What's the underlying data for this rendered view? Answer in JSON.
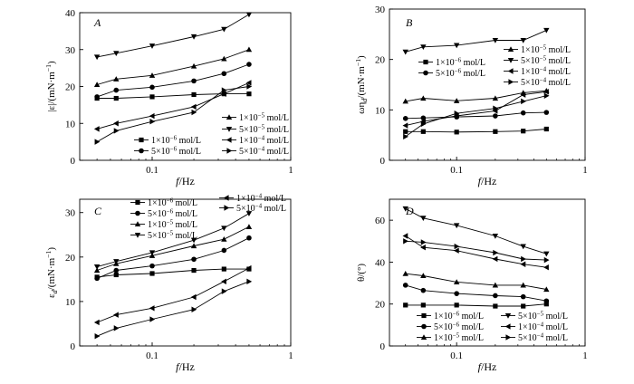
{
  "chart_data": [
    {
      "type": "line",
      "panel": "A",
      "xscale": "log",
      "xlim": [
        0.03,
        1
      ],
      "ylim": [
        0,
        40
      ],
      "xlabel": "f/Hz",
      "ylabel": "|ε|/(mN·m⁻¹)",
      "xticks": [
        0.1,
        1
      ],
      "xticklabels": [
        "0.1",
        "1"
      ],
      "yticks": [
        0,
        10,
        20,
        30,
        40
      ],
      "x": [
        0.04,
        0.055,
        0.1,
        0.2,
        0.33,
        0.5
      ],
      "legend": [
        {
          "col": 1,
          "row": 0,
          "series": 2
        },
        {
          "col": 1,
          "row": 1,
          "series": 3
        },
        {
          "col": 0,
          "row": 2,
          "series": 0
        },
        {
          "col": 1,
          "row": 2,
          "series": 4
        },
        {
          "col": 0,
          "row": 3,
          "series": 1
        },
        {
          "col": 1,
          "row": 3,
          "series": 5
        }
      ],
      "series": [
        {
          "name": "1×10⁻⁶ mol/L",
          "marker": "square",
          "values": [
            16.8,
            16.8,
            17.2,
            17.8,
            18.0,
            18.0
          ]
        },
        {
          "name": "5×10⁻⁶ mol/L",
          "marker": "circle",
          "values": [
            17.2,
            19.0,
            19.8,
            21.5,
            23.5,
            26.0
          ]
        },
        {
          "name": "1×10⁻⁵ mol/L",
          "marker": "triangle-up",
          "values": [
            20.5,
            22.0,
            23.0,
            25.5,
            27.5,
            30.0
          ]
        },
        {
          "name": "5×10⁻⁵ mol/L",
          "marker": "triangle-down",
          "values": [
            28.0,
            29.0,
            31.0,
            33.5,
            35.5,
            39.5
          ]
        },
        {
          "name": "1×10⁻⁴ mol/L",
          "marker": "triangle-left",
          "values": [
            8.5,
            10.0,
            12.0,
            14.5,
            18.0,
            21.0
          ]
        },
        {
          "name": "5×10⁻⁴ mol/L",
          "marker": "triangle-right",
          "values": [
            5.0,
            8.0,
            10.5,
            13.0,
            19.0,
            20.0
          ]
        }
      ]
    },
    {
      "type": "line",
      "panel": "B",
      "xscale": "log",
      "xlim": [
        0.03,
        1
      ],
      "ylim": [
        0,
        30
      ],
      "xlabel": "f/Hz",
      "ylabel": "ωη_d/(mN·m⁻¹)",
      "xticks": [
        0.1,
        1
      ],
      "xticklabels": [
        "0.1",
        "1"
      ],
      "yticks": [
        0,
        10,
        20,
        30
      ],
      "x": [
        0.04,
        0.055,
        0.1,
        0.2,
        0.33,
        0.5
      ],
      "legend": [
        {
          "col": 0,
          "row": 0,
          "series": 0
        },
        {
          "col": 0,
          "row": 1,
          "series": 1
        },
        {
          "col": 1,
          "row": 0,
          "series": 2
        },
        {
          "col": 1,
          "row": 1,
          "series": 3
        },
        {
          "col": 1,
          "row": 2,
          "series": 4
        },
        {
          "col": 1,
          "row": 3,
          "series": 5
        }
      ],
      "series": [
        {
          "name": "1×10⁻⁶ mol/L",
          "marker": "square",
          "values": [
            5.7,
            5.7,
            5.6,
            5.7,
            5.8,
            6.2
          ]
        },
        {
          "name": "5×10⁻⁶ mol/L",
          "marker": "circle",
          "values": [
            8.3,
            8.4,
            8.6,
            8.8,
            9.4,
            9.5
          ]
        },
        {
          "name": "1×10⁻⁵ mol/L",
          "marker": "triangle-up",
          "values": [
            11.7,
            12.3,
            11.8,
            12.3,
            13.4,
            13.8
          ]
        },
        {
          "name": "5×10⁻⁵ mol/L",
          "marker": "triangle-down",
          "values": [
            21.5,
            22.5,
            22.8,
            23.8,
            23.8,
            25.8
          ]
        },
        {
          "name": "1×10⁻⁴ mol/L",
          "marker": "triangle-left",
          "values": [
            6.9,
            7.7,
            8.8,
            9.8,
            13.0,
            13.6
          ]
        },
        {
          "name": "5×10⁻⁴ mol/L",
          "marker": "triangle-right",
          "values": [
            4.7,
            7.2,
            9.3,
            10.3,
            11.7,
            12.8
          ]
        }
      ]
    },
    {
      "type": "line",
      "panel": "C",
      "xscale": "log",
      "xlim": [
        0.03,
        1
      ],
      "ylim": [
        0,
        33
      ],
      "xlabel": "f/Hz",
      "ylabel": "ε_d/(mN·m⁻¹)",
      "xticks": [
        0.1,
        1
      ],
      "xticklabels": [
        "0.1",
        "1"
      ],
      "yticks": [
        0,
        10,
        20,
        30
      ],
      "x": [
        0.04,
        0.055,
        0.1,
        0.2,
        0.33,
        0.5
      ],
      "legend": [
        {
          "col": 0,
          "row": 0,
          "series": 0
        },
        {
          "col": 0,
          "row": 1,
          "series": 1
        },
        {
          "col": 0,
          "row": 2,
          "series": 2
        },
        {
          "col": 0,
          "row": 3,
          "series": 3
        },
        {
          "col": 1,
          "row": 0,
          "series": 4
        },
        {
          "col": 1,
          "row": 1,
          "series": 5
        }
      ],
      "series": [
        {
          "name": "1×10⁻⁶ mol/L",
          "marker": "square",
          "values": [
            15.5,
            16.0,
            16.3,
            17.0,
            17.3,
            17.3
          ]
        },
        {
          "name": "5×10⁻⁶ mol/L",
          "marker": "circle",
          "values": [
            15.2,
            17.0,
            18.0,
            19.5,
            21.5,
            24.3
          ]
        },
        {
          "name": "1×10⁻⁵ mol/L",
          "marker": "triangle-up",
          "values": [
            17.0,
            18.5,
            20.3,
            22.5,
            24.0,
            26.8
          ]
        },
        {
          "name": "5×10⁻⁵ mol/L",
          "marker": "triangle-down",
          "values": [
            17.8,
            19.0,
            21.0,
            23.8,
            26.5,
            29.8
          ]
        },
        {
          "name": "1×10⁻⁴ mol/L",
          "marker": "triangle-left",
          "values": [
            5.3,
            7.0,
            8.5,
            11.0,
            14.5,
            17.5
          ]
        },
        {
          "name": "5×10⁻⁴ mol/L",
          "marker": "triangle-right",
          "values": [
            2.2,
            4.0,
            6.0,
            8.2,
            12.3,
            14.5
          ]
        }
      ]
    },
    {
      "type": "line",
      "panel": "D",
      "xscale": "log",
      "xlim": [
        0.03,
        1
      ],
      "ylim": [
        0,
        70
      ],
      "xlabel": "f/Hz",
      "ylabel": "θ/(°)",
      "xticks": [
        0.1,
        1
      ],
      "xticklabels": [
        "0.1",
        "1"
      ],
      "yticks": [
        0,
        20,
        40,
        60
      ],
      "x": [
        0.04,
        0.055,
        0.1,
        0.2,
        0.33,
        0.5
      ],
      "legend": [
        {
          "col": 0,
          "row": 0,
          "series": 0
        },
        {
          "col": 0,
          "row": 1,
          "series": 1
        },
        {
          "col": 0,
          "row": 2,
          "series": 2
        },
        {
          "col": 1,
          "row": 0,
          "series": 3
        },
        {
          "col": 1,
          "row": 1,
          "series": 4
        },
        {
          "col": 1,
          "row": 2,
          "series": 5
        }
      ],
      "series": [
        {
          "name": "1×10⁻⁶ mol/L",
          "marker": "square",
          "values": [
            19.5,
            19.5,
            19.5,
            19.0,
            19.0,
            20.0
          ]
        },
        {
          "name": "5×10⁻⁶ mol/L",
          "marker": "circle",
          "values": [
            29.0,
            26.5,
            25.0,
            24.0,
            23.5,
            21.5
          ]
        },
        {
          "name": "1×10⁻⁵ mol/L",
          "marker": "triangle-up",
          "values": [
            34.5,
            33.5,
            30.5,
            29.0,
            29.0,
            27.0
          ]
        },
        {
          "name": "5×10⁻⁵ mol/L",
          "marker": "triangle-down",
          "values": [
            65.5,
            61.0,
            57.5,
            52.5,
            47.5,
            44.0
          ]
        },
        {
          "name": "1×10⁻⁴ mol/L",
          "marker": "triangle-left",
          "values": [
            52.5,
            47.0,
            45.5,
            41.5,
            39.0,
            37.5
          ]
        },
        {
          "name": "5×10⁻⁴ mol/L",
          "marker": "triangle-right",
          "values": [
            50.0,
            49.5,
            47.5,
            44.5,
            41.5,
            41.0
          ]
        }
      ]
    }
  ]
}
